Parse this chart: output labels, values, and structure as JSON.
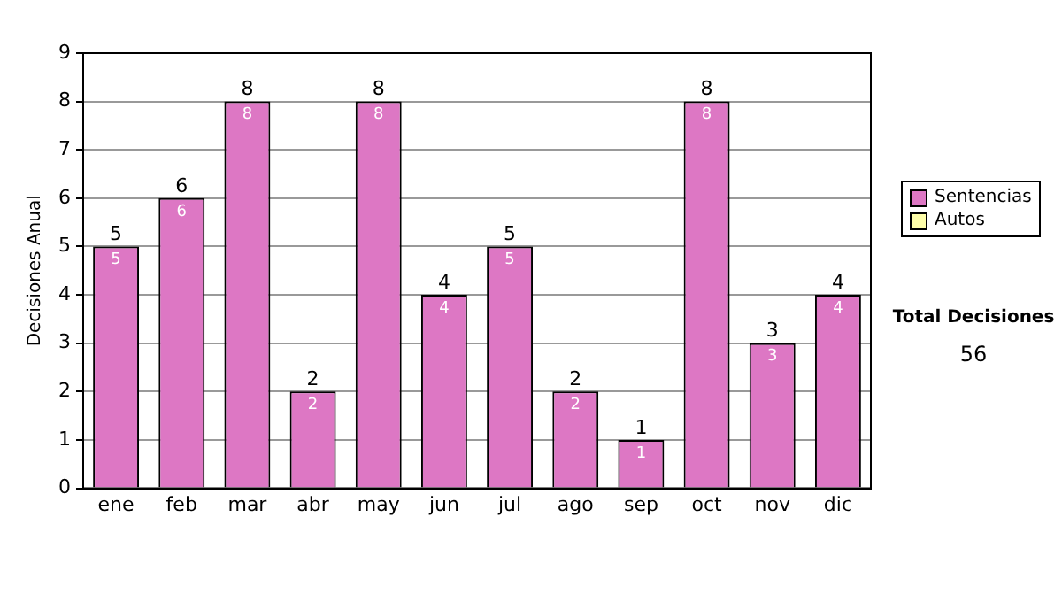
{
  "chart_data": {
    "type": "bar",
    "ylabel": "Decisiones Anual",
    "categories": [
      "ene",
      "feb",
      "mar",
      "abr",
      "may",
      "jun",
      "jul",
      "ago",
      "sep",
      "oct",
      "nov",
      "dic"
    ],
    "series": [
      {
        "name": "Sentencias",
        "color": "#dd77c4",
        "values": [
          5,
          6,
          8,
          2,
          8,
          4,
          5,
          2,
          1,
          8,
          3,
          4
        ],
        "value_labels": [
          "5",
          "6",
          "8",
          "2",
          "8",
          "4",
          "5",
          "2",
          "1",
          "8",
          "3",
          "4"
        ]
      },
      {
        "name": "Autos",
        "color": "#ffffaa",
        "values": [
          0,
          0,
          0,
          0,
          0,
          0,
          0,
          0,
          0,
          0,
          0,
          0
        ]
      }
    ],
    "stacked": true,
    "totals": [
      "5",
      "6",
      "8",
      "2",
      "8",
      "4",
      "5",
      "2",
      "1",
      "8",
      "3",
      "4"
    ],
    "ylim": [
      0,
      9
    ],
    "yticks": [
      0,
      1,
      2,
      3,
      4,
      5,
      6,
      7,
      8,
      9
    ],
    "grid": "y",
    "legend": "right",
    "annotations": [
      "Total Decisiones",
      "56"
    ]
  }
}
